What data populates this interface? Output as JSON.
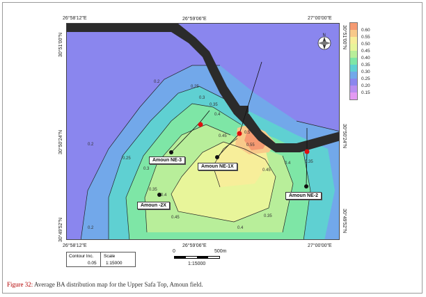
{
  "coords": {
    "top_left": "26°58'12\"E",
    "top_mid": "26°59'06\"E",
    "top_right": "27°00'00\"E",
    "bottom_left": "26°58'12\"E",
    "bottom_mid": "26°59'06\"E",
    "bottom_right": "27°00'00\"E",
    "left_top": "30°51'00\"N",
    "left_mid": "30°50'24\"N",
    "left_bottom": "30°49'52\"N",
    "right_top": "30°51'00\"N",
    "right_mid": "30°50'24\"N",
    "right_bottom": "30°49'52\"N"
  },
  "legend": {
    "labels": [
      "0.60",
      "0.55",
      "0.50",
      "0.45",
      "0.40",
      "0.35",
      "0.30",
      "0.25",
      "0.20",
      "0.15"
    ],
    "colors": [
      "#f59a72",
      "#f8c98a",
      "#f7ee9a",
      "#e8f59a",
      "#b8ee9a",
      "#7ee6a6",
      "#5fd0d2",
      "#72a8ea",
      "#8a86ee",
      "#b98ef0",
      "#e39af3"
    ]
  },
  "contours": [
    "0.2",
    "0.25",
    "0.3",
    "0.35",
    "0.4",
    "0.45",
    "0.5",
    "0.55"
  ],
  "wells": [
    {
      "name": "Amoun NE-3"
    },
    {
      "name": "Amoun NE-1X"
    },
    {
      "name": "Amoun -2X"
    },
    {
      "name": "Amoun NE-2"
    }
  ],
  "info": {
    "contour_label": "Contour Inc.",
    "contour_value": "0.05",
    "scale_label": "Scale",
    "scale_value": "1:15000"
  },
  "scalebar": {
    "start": "0",
    "end": "500m",
    "ratio": "1:15000"
  },
  "caption": {
    "prefix": "Figure 32:",
    "text": " Average BA distribution map for the Upper Safa Top, Amoun field."
  }
}
